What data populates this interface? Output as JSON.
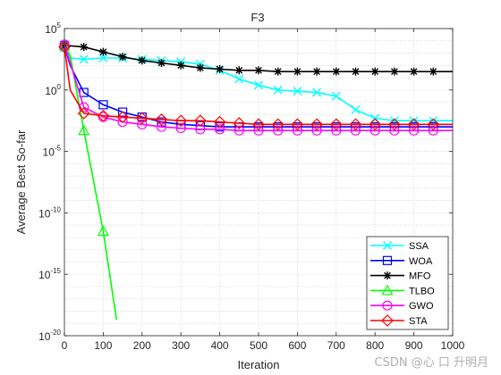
{
  "watermark": "CSDN @心 口 升明月",
  "chart_data": {
    "type": "line",
    "title": "F3",
    "xlabel": "Iteration",
    "ylabel": "Average Best So-far",
    "xlim": [
      0,
      1000
    ],
    "ylim_exponent": [
      -20,
      5
    ],
    "yscale": "log",
    "grid": true,
    "legend_position": "bottom-right",
    "x_ticks": [
      "0",
      "100",
      "200",
      "300",
      "400",
      "500",
      "600",
      "700",
      "800",
      "900",
      "1000"
    ],
    "y_ticks": [
      {
        "exp": 5,
        "label": "10",
        "sup": "5"
      },
      {
        "exp": 0,
        "label": "10",
        "sup": "0"
      },
      {
        "exp": -5,
        "label": "10",
        "sup": "-5"
      },
      {
        "exp": -10,
        "label": "10",
        "sup": "-10"
      },
      {
        "exp": -15,
        "label": "10",
        "sup": "-15"
      },
      {
        "exp": -20,
        "label": "10",
        "sup": "-20"
      }
    ],
    "series": [
      {
        "name": "SSA",
        "color": "#00ffff",
        "marker": "x",
        "x": [
          0,
          15,
          50,
          100,
          150,
          200,
          250,
          300,
          350,
          400,
          450,
          500,
          550,
          600,
          650,
          700,
          750,
          800,
          850,
          900,
          950,
          1000
        ],
        "y_exp": [
          3.4,
          2.6,
          2.5,
          2.6,
          2.6,
          2.5,
          2.4,
          2.3,
          2.1,
          1.6,
          0.9,
          0.4,
          0.0,
          -0.1,
          -0.2,
          -0.5,
          -1.6,
          -2.3,
          -2.5,
          -2.5,
          -2.5,
          -2.5
        ]
      },
      {
        "name": "WOA",
        "color": "#0000ff",
        "marker": "square",
        "x": [
          0,
          15,
          50,
          100,
          150,
          200,
          250,
          300,
          350,
          400,
          450,
          500,
          550,
          600,
          650,
          700,
          750,
          800,
          850,
          900,
          950,
          1000
        ],
        "y_exp": [
          3.6,
          2.0,
          -0.2,
          -1.2,
          -1.8,
          -2.2,
          -2.6,
          -2.8,
          -2.9,
          -3.0,
          -3.0,
          -3.0,
          -3.0,
          -3.0,
          -3.0,
          -3.0,
          -3.0,
          -3.0,
          -3.0,
          -3.0,
          -3.0,
          -3.0
        ]
      },
      {
        "name": "MFO",
        "color": "#000000",
        "marker": "star",
        "x": [
          0,
          15,
          50,
          100,
          150,
          200,
          250,
          300,
          350,
          400,
          450,
          500,
          550,
          600,
          650,
          700,
          750,
          800,
          850,
          900,
          950,
          1000
        ],
        "y_exp": [
          3.6,
          3.6,
          3.5,
          3.1,
          2.7,
          2.4,
          2.2,
          2.0,
          1.8,
          1.7,
          1.6,
          1.6,
          1.5,
          1.5,
          1.5,
          1.5,
          1.5,
          1.5,
          1.5,
          1.5,
          1.5,
          1.5
        ]
      },
      {
        "name": "TLBO",
        "color": "#00ff00",
        "marker": "triangle",
        "x": [
          0,
          15,
          50,
          100,
          134
        ],
        "y_exp": [
          3.6,
          2.8,
          -3.3,
          -11.5,
          -18.7
        ]
      },
      {
        "name": "GWO",
        "color": "#ff00ff",
        "marker": "circle",
        "x": [
          0,
          15,
          50,
          100,
          150,
          200,
          250,
          300,
          350,
          400,
          450,
          500,
          550,
          600,
          650,
          700,
          750,
          800,
          850,
          900,
          950,
          1000
        ],
        "y_exp": [
          3.7,
          2.2,
          -1.4,
          -2.2,
          -2.6,
          -2.8,
          -3.0,
          -3.1,
          -3.2,
          -3.2,
          -3.3,
          -3.3,
          -3.3,
          -3.3,
          -3.3,
          -3.3,
          -3.3,
          -3.3,
          -3.3,
          -3.3,
          -3.3,
          -3.3
        ]
      },
      {
        "name": "STA",
        "color": "#ff0000",
        "marker": "diamond",
        "x": [
          0,
          15,
          50,
          100,
          150,
          200,
          250,
          300,
          350,
          400,
          450,
          500,
          550,
          600,
          650,
          700,
          750,
          800,
          850,
          900,
          950,
          1000
        ],
        "y_exp": [
          3.5,
          0.0,
          -1.9,
          -2.1,
          -2.2,
          -2.3,
          -2.4,
          -2.5,
          -2.5,
          -2.6,
          -2.7,
          -2.8,
          -2.8,
          -2.8,
          -2.8,
          -2.8,
          -2.8,
          -2.8,
          -2.8,
          -2.8,
          -2.8,
          -2.8
        ]
      }
    ]
  }
}
